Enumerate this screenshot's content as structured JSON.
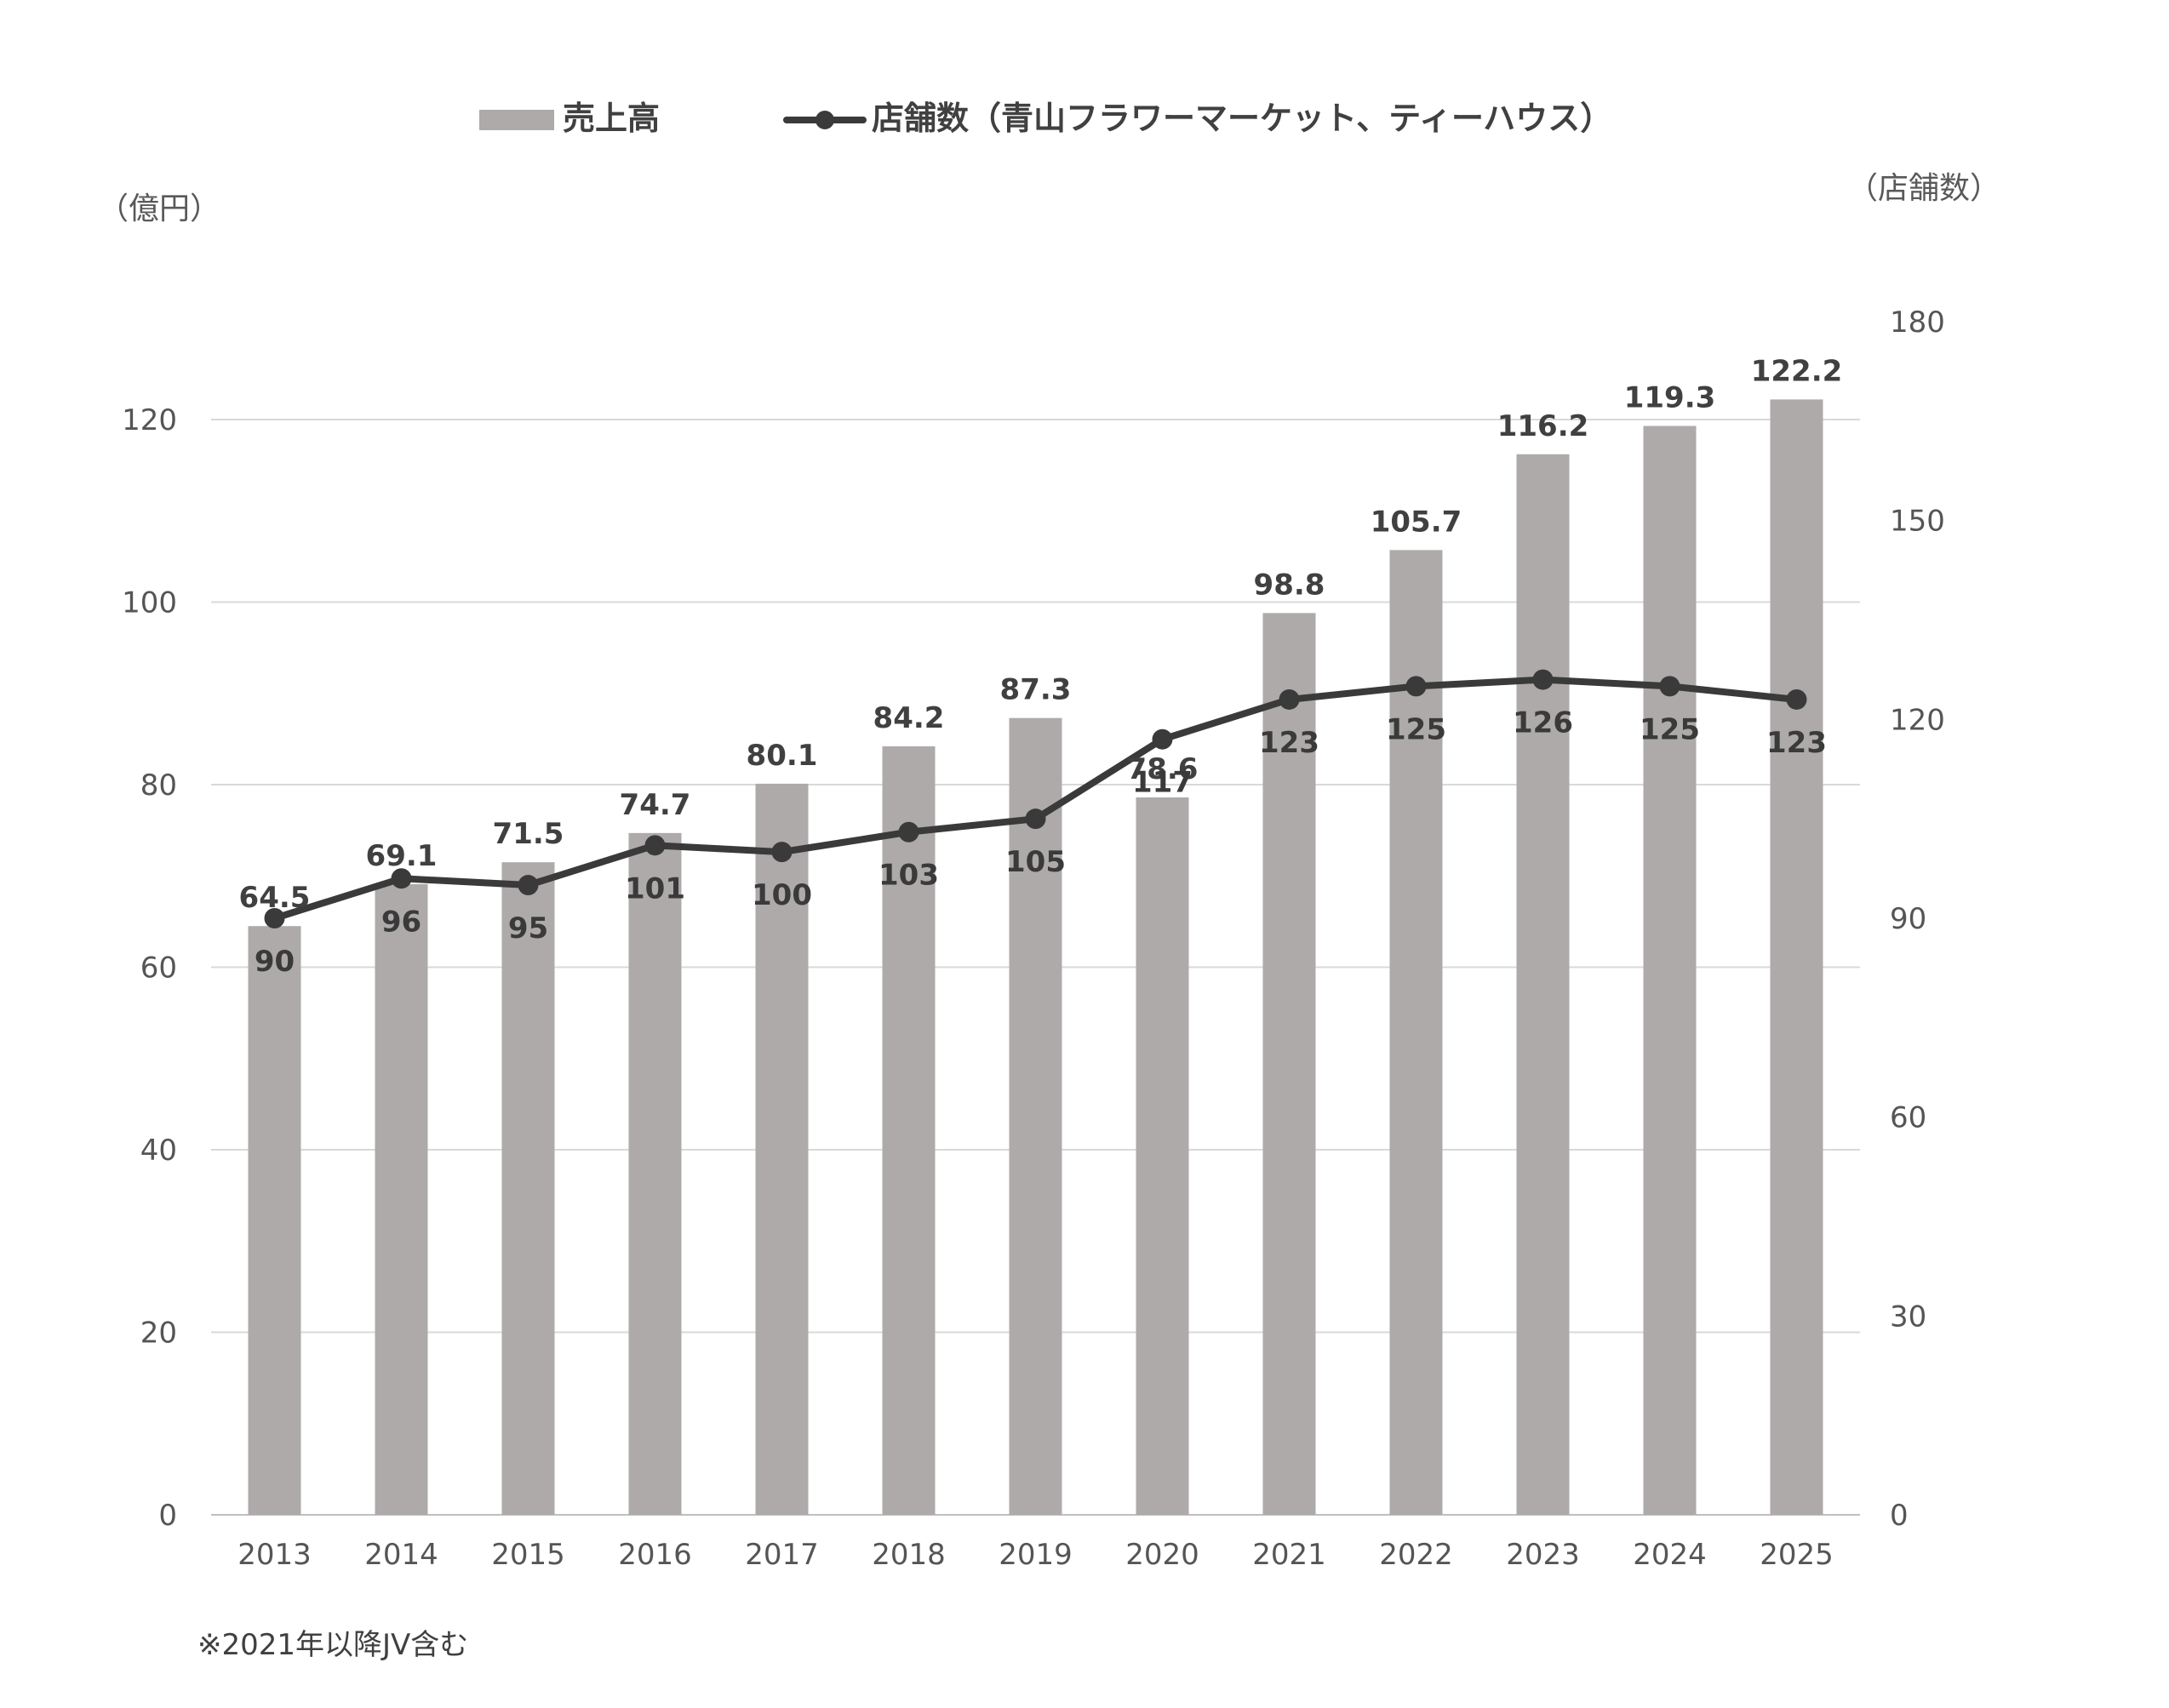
{
  "chart_data": {
    "type": "bar+line",
    "categories": [
      "2013",
      "2014",
      "2015",
      "2016",
      "2017",
      "2018",
      "2019",
      "2020",
      "2021",
      "2022",
      "2023",
      "2024",
      "2025"
    ],
    "series": [
      {
        "name": "売上高",
        "type": "bar",
        "axis": "left",
        "color": "#aeaaaa",
        "values": [
          64.5,
          69.1,
          71.5,
          74.7,
          80.1,
          84.2,
          87.3,
          78.6,
          98.8,
          105.7,
          116.2,
          119.3,
          122.2
        ]
      },
      {
        "name": "店舗数（青山フラワーマーケット、ティーハウス）",
        "type": "line",
        "axis": "right",
        "color": "#3a3a3a",
        "values": [
          90,
          96,
          95,
          101,
          100,
          103,
          105,
          117,
          123,
          125,
          126,
          125,
          123
        ]
      }
    ],
    "y_left": {
      "label": "（億円）",
      "min": 0,
      "max": 120,
      "ticks": [
        0,
        20,
        40,
        60,
        80,
        100,
        120
      ]
    },
    "y_right": {
      "label": "（店舗数）",
      "min": 0,
      "max": 180,
      "ticks": [
        0,
        30,
        60,
        90,
        120,
        150,
        180
      ]
    },
    "legend_position": "top-center",
    "grid": true,
    "footnote": "※2021年以降JV含む"
  }
}
